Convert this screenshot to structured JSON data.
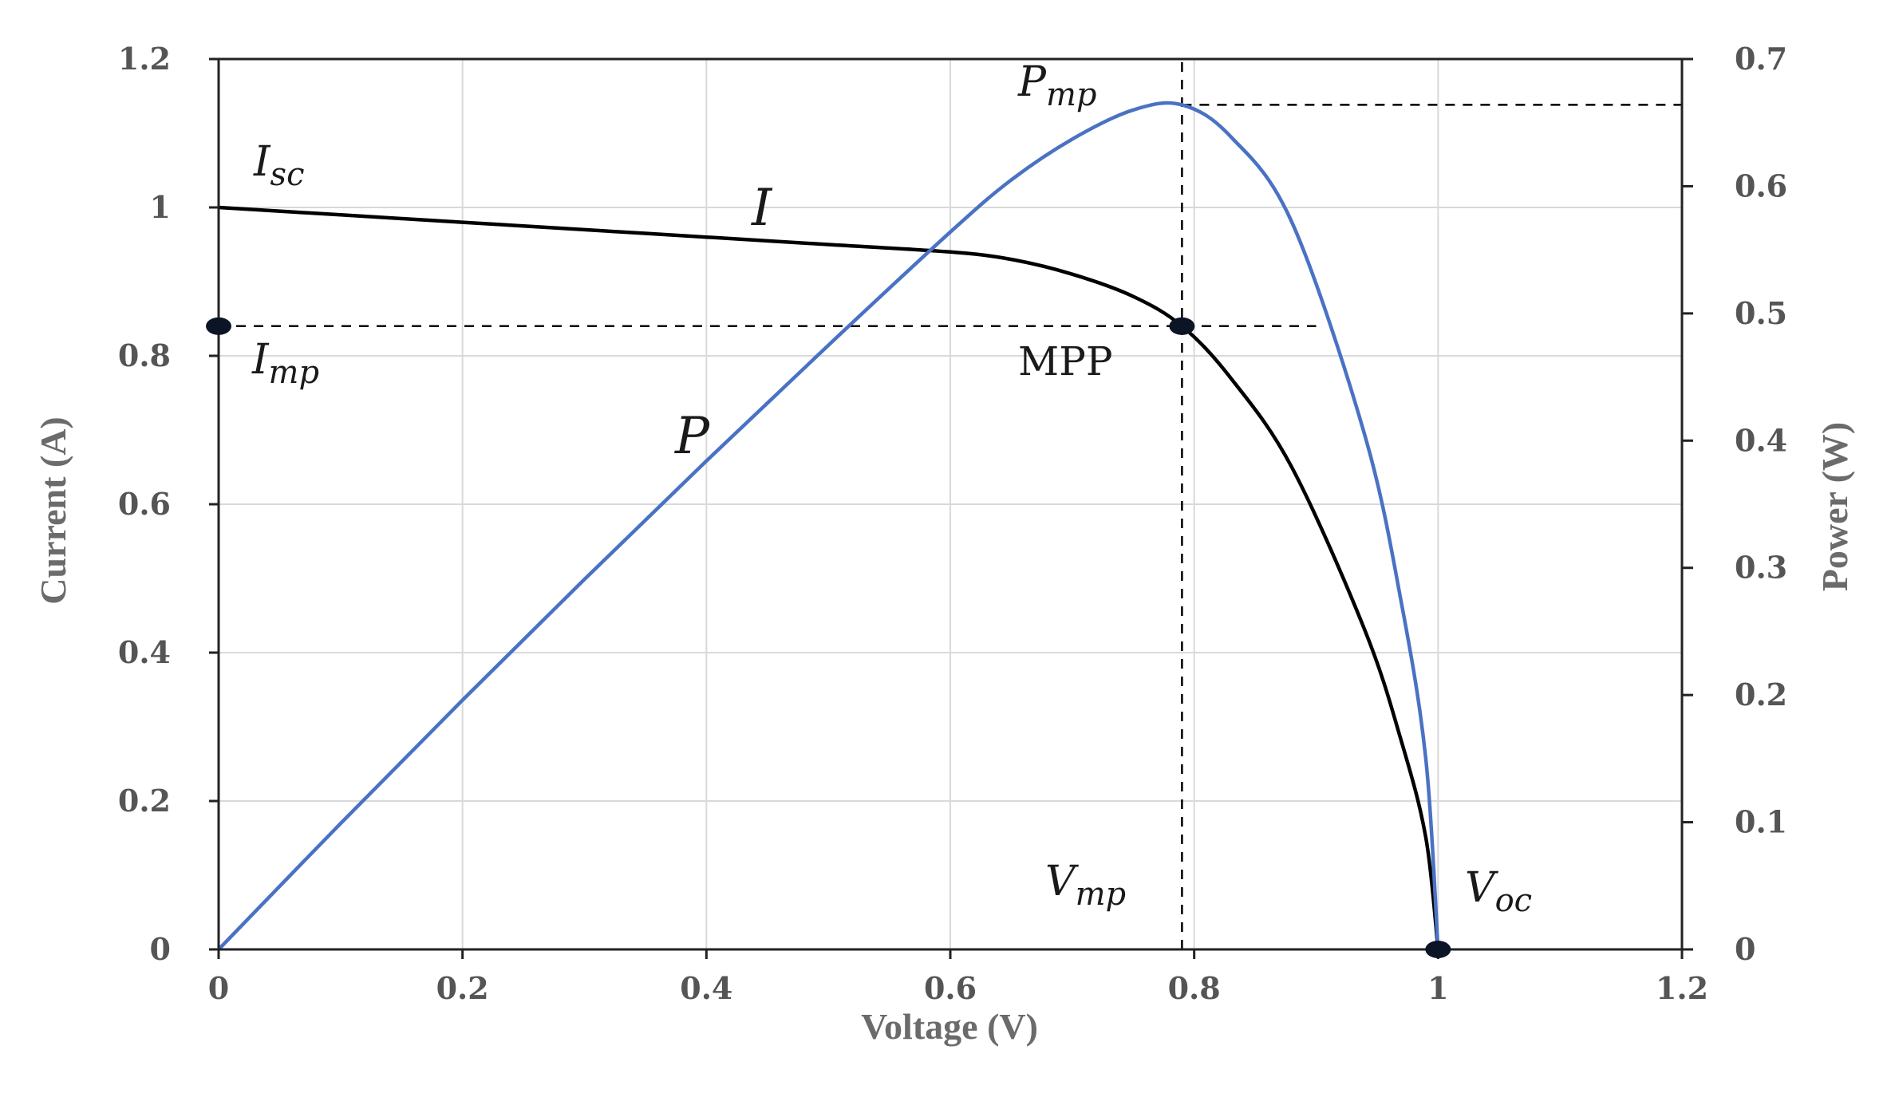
{
  "chart_data": {
    "type": "line",
    "title": "",
    "xlabel": "Voltage (V)",
    "ylabel": "Current (A)",
    "y2label": "Power (W)",
    "xlim": [
      0,
      1.2
    ],
    "ylim": [
      0,
      1.2
    ],
    "y2lim": [
      0,
      0.7
    ],
    "grid": true,
    "x_ticks": [
      "0",
      "0.2",
      "0.4",
      "0.6",
      "0.8",
      "1",
      "1.2"
    ],
    "y_ticks": [
      "0",
      "0.2",
      "0.4",
      "0.6",
      "0.8",
      "1",
      "1.2"
    ],
    "y2_ticks": [
      "0",
      "0.1",
      "0.2",
      "0.3",
      "0.4",
      "0.5",
      "0.6",
      "0.7"
    ],
    "series": [
      {
        "name": "I",
        "axis": "left",
        "color": "#000000",
        "x": [
          0,
          0.1,
          0.2,
          0.3,
          0.4,
          0.5,
          0.6,
          0.65,
          0.7,
          0.75,
          0.79,
          0.83,
          0.88,
          0.94,
          0.97,
          0.99,
          1.0
        ],
        "y": [
          1.0,
          0.99,
          0.98,
          0.97,
          0.96,
          0.95,
          0.94,
          0.93,
          0.91,
          0.88,
          0.84,
          0.77,
          0.65,
          0.43,
          0.28,
          0.15,
          0.0
        ]
      },
      {
        "name": "P",
        "axis": "right",
        "color": "#4a72c4",
        "x": [
          0,
          0.1,
          0.2,
          0.3,
          0.4,
          0.5,
          0.6,
          0.65,
          0.7,
          0.75,
          0.79,
          0.83,
          0.88,
          0.94,
          0.97,
          0.99,
          1.0
        ],
        "y": [
          0,
          0.099,
          0.196,
          0.291,
          0.384,
          0.475,
          0.564,
          0.605,
          0.637,
          0.66,
          0.664,
          0.639,
          0.572,
          0.404,
          0.272,
          0.149,
          0.0
        ]
      }
    ],
    "guides": [
      {
        "kind": "hline",
        "axis": "left",
        "value": 0.84,
        "from": 0,
        "to": 0.9
      },
      {
        "kind": "hline",
        "axis": "right",
        "value": 0.664,
        "from": 0.79,
        "to": 1.2
      },
      {
        "kind": "vline",
        "value": 0.79,
        "from_y": 0,
        "to_y": 1.2
      }
    ],
    "markers": [
      {
        "name": "isc-imp-marker",
        "x": 0,
        "y": 0.84
      },
      {
        "name": "mpp-marker",
        "x": 0.79,
        "y": 0.84
      },
      {
        "name": "voc-marker",
        "x": 1.0,
        "y": 0
      }
    ],
    "annotations": {
      "isc": {
        "main": "I",
        "sub": "sc"
      },
      "imp": {
        "main": "I",
        "sub": "mp"
      },
      "pmp": {
        "main": "P",
        "sub": "mp"
      },
      "vmp": {
        "main": "V",
        "sub": "mp"
      },
      "voc": {
        "main": "V",
        "sub": "oc"
      },
      "i_curve": "I",
      "p_curve": "P",
      "mpp": "MPP"
    }
  }
}
